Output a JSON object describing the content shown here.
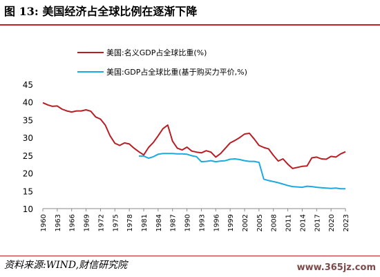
{
  "title": "图 13:  美国经济占全球比例在逐渐下降",
  "source": "资料来源:WIND,财信研究院",
  "watermark": "www.365jz.com",
  "colors": {
    "title_rule": "#c21f26",
    "nominal": "#b81d24",
    "ppp": "#1ca9e0",
    "axis": "#888888"
  },
  "chart_data": {
    "type": "line",
    "title": "",
    "xlabel": "",
    "ylabel": "",
    "ylim": [
      10,
      45
    ],
    "yticks": [
      10,
      15,
      20,
      25,
      30,
      35,
      40,
      45
    ],
    "xlim": [
      1960,
      2023
    ],
    "xticks": [
      1960,
      1963,
      1966,
      1969,
      1972,
      1975,
      1978,
      1981,
      1984,
      1987,
      1990,
      1993,
      1996,
      1999,
      2002,
      2005,
      2008,
      2011,
      2014,
      2017,
      2020,
      2023
    ],
    "grid": false,
    "legend_position": "top-left",
    "series": [
      {
        "name": "美国:名义GDP占全球比重(%)",
        "color": "#b81d24",
        "x": [
          1960,
          1961,
          1962,
          1963,
          1964,
          1965,
          1966,
          1967,
          1968,
          1969,
          1970,
          1971,
          1972,
          1973,
          1974,
          1975,
          1976,
          1977,
          1978,
          1979,
          1980,
          1981,
          1982,
          1983,
          1984,
          1985,
          1986,
          1987,
          1988,
          1989,
          1990,
          1991,
          1992,
          1993,
          1994,
          1995,
          1996,
          1997,
          1998,
          1999,
          2000,
          2001,
          2002,
          2003,
          2004,
          2005,
          2006,
          2007,
          2008,
          2009,
          2010,
          2011,
          2012,
          2013,
          2014,
          2015,
          2016,
          2017,
          2018,
          2019,
          2020,
          2021,
          2022,
          2023
        ],
        "values": [
          39.8,
          39.2,
          38.8,
          38.9,
          38.0,
          37.5,
          37.2,
          37.5,
          37.5,
          37.8,
          37.4,
          35.8,
          35.2,
          33.5,
          30.5,
          28.4,
          27.8,
          28.5,
          28.2,
          27.0,
          26.0,
          25.1,
          27.2,
          28.6,
          30.5,
          32.5,
          33.5,
          29.0,
          27.0,
          26.5,
          27.3,
          26.2,
          25.9,
          25.7,
          26.3,
          25.9,
          24.5,
          25.5,
          27.0,
          28.5,
          29.2,
          30.0,
          31.0,
          31.2,
          29.6,
          27.8,
          27.2,
          26.8,
          25.0,
          23.4,
          24.0,
          22.5,
          21.3,
          21.6,
          21.9,
          22.0,
          24.3,
          24.5,
          24.0,
          23.9,
          24.7,
          24.5,
          25.4,
          26.0
        ]
      },
      {
        "name": "美国:GDP占全球比重(基于购买力平价,%)",
        "color": "#1ca9e0",
        "x": [
          1980,
          1981,
          1982,
          1983,
          1984,
          1985,
          1986,
          1987,
          1988,
          1989,
          1990,
          1991,
          1992,
          1993,
          1994,
          1995,
          1996,
          1997,
          1998,
          1999,
          2000,
          2001,
          2002,
          2003,
          2004,
          2005,
          2006,
          2007,
          2008,
          2009,
          2010,
          2011,
          2012,
          2013,
          2014,
          2015,
          2016,
          2017,
          2018,
          2019,
          2020,
          2021,
          2022,
          2023
        ],
        "values": [
          24.8,
          24.8,
          24.2,
          24.6,
          25.3,
          25.5,
          25.5,
          25.5,
          25.4,
          25.4,
          25.3,
          24.9,
          24.6,
          23.2,
          23.3,
          23.5,
          23.2,
          23.4,
          23.5,
          23.9,
          24.0,
          23.8,
          23.5,
          23.3,
          23.3,
          23.0,
          18.3,
          17.9,
          17.6,
          17.3,
          16.9,
          16.5,
          16.2,
          16.1,
          16.0,
          16.3,
          16.2,
          16.0,
          15.9,
          15.8,
          15.7,
          15.8,
          15.6,
          15.6
        ]
      }
    ]
  }
}
